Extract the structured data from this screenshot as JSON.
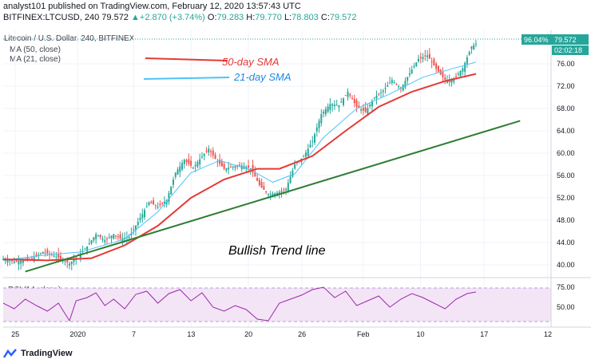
{
  "header": {
    "publish_line": "analyst101 published on TradingView.com, February 12, 2020 13:57:43 UTC",
    "symbol": "BITFINEX:LTCUSD, 240",
    "last": "79.572",
    "change": "+2.870 (+3.74%)",
    "open_label": "O:",
    "open": "79.283",
    "high_label": "H:",
    "high": "79.770",
    "low_label": "L:",
    "low": "78.803",
    "close_label": "C:",
    "close": "79.572"
  },
  "pane_title": "Litecoin / U.S. Dollar, 240, BITFINEX",
  "indicator_1": "MA (50, close)",
  "indicator_2": "MA (21, close)",
  "rsi_label": "RSI (14, close)",
  "price_tag": {
    "percent": "96.04%",
    "price": "79.572",
    "countdown": "02:02:18"
  },
  "annotations": {
    "sma50": "50-day SMA",
    "sma21": "21-day SMA",
    "trend": "Bullish Trend line"
  },
  "footer": {
    "brand": "TradingView"
  },
  "colors": {
    "up": "#26a69a",
    "down": "#ef5350",
    "sma50": "#e53935",
    "sma21": "#4fc3f7",
    "trend": "#2e7d32",
    "rsi": "#9c27b0",
    "rsi_band": "#e1bee7"
  },
  "chart_data": [
    {
      "type": "candlestick",
      "title": "Litecoin / U.S. Dollar, 240, BITFINEX",
      "x_ticks": [
        "25",
        "2020",
        "7",
        "13",
        "20",
        "26",
        "Feb",
        "10",
        "17",
        "12"
      ],
      "y_ticks": [
        76,
        72,
        68,
        64,
        60,
        56,
        52,
        48,
        44,
        40
      ],
      "ylim": [
        38,
        82
      ],
      "close_path": [
        {
          "x": 0,
          "y": 41.0
        },
        {
          "x": 5,
          "y": 40.6
        },
        {
          "x": 12,
          "y": 40.9
        },
        {
          "x": 18,
          "y": 42.3
        },
        {
          "x": 22,
          "y": 41.8
        },
        {
          "x": 27,
          "y": 41.0
        },
        {
          "x": 30,
          "y": 40.2
        },
        {
          "x": 33,
          "y": 41.3
        },
        {
          "x": 38,
          "y": 43.3
        },
        {
          "x": 42,
          "y": 45.5
        },
        {
          "x": 46,
          "y": 44.4
        },
        {
          "x": 50,
          "y": 45.5
        },
        {
          "x": 53,
          "y": 44.7
        },
        {
          "x": 57,
          "y": 45.0
        },
        {
          "x": 62,
          "y": 48.4
        },
        {
          "x": 66,
          "y": 51.2
        },
        {
          "x": 70,
          "y": 50.4
        },
        {
          "x": 74,
          "y": 51.6
        },
        {
          "x": 78,
          "y": 56.5
        },
        {
          "x": 82,
          "y": 58.8
        },
        {
          "x": 86,
          "y": 57.4
        },
        {
          "x": 90,
          "y": 59.4
        },
        {
          "x": 93,
          "y": 60.8
        },
        {
          "x": 96,
          "y": 59.0
        },
        {
          "x": 100,
          "y": 57.2
        },
        {
          "x": 104,
          "y": 57.6
        },
        {
          "x": 108,
          "y": 57.8
        },
        {
          "x": 112,
          "y": 57.3
        },
        {
          "x": 116,
          "y": 54.3
        },
        {
          "x": 120,
          "y": 52.6
        },
        {
          "x": 124,
          "y": 52.9
        },
        {
          "x": 128,
          "y": 53.6
        },
        {
          "x": 132,
          "y": 58.0
        },
        {
          "x": 136,
          "y": 59.4
        },
        {
          "x": 140,
          "y": 62.2
        },
        {
          "x": 144,
          "y": 67.0
        },
        {
          "x": 148,
          "y": 68.8
        },
        {
          "x": 152,
          "y": 68.6
        },
        {
          "x": 156,
          "y": 71.0
        },
        {
          "x": 160,
          "y": 68.3
        },
        {
          "x": 164,
          "y": 67.4
        },
        {
          "x": 168,
          "y": 70.0
        },
        {
          "x": 172,
          "y": 71.2
        },
        {
          "x": 176,
          "y": 73.1
        },
        {
          "x": 180,
          "y": 71.6
        },
        {
          "x": 184,
          "y": 74.3
        },
        {
          "x": 188,
          "y": 76.9
        },
        {
          "x": 192,
          "y": 77.5
        },
        {
          "x": 196,
          "y": 75.1
        },
        {
          "x": 200,
          "y": 73.1
        },
        {
          "x": 204,
          "y": 73.3
        },
        {
          "x": 208,
          "y": 75.2
        },
        {
          "x": 212,
          "y": 79.1
        },
        {
          "x": 214,
          "y": 79.57
        }
      ],
      "series": [
        {
          "name": "MA (50, close)",
          "values": [
            {
              "x": 0,
              "y": 41.0
            },
            {
              "x": 20,
              "y": 40.8
            },
            {
              "x": 40,
              "y": 41.2
            },
            {
              "x": 55,
              "y": 43.5
            },
            {
              "x": 70,
              "y": 47.0
            },
            {
              "x": 85,
              "y": 52.0
            },
            {
              "x": 100,
              "y": 55.3
            },
            {
              "x": 115,
              "y": 57.2
            },
            {
              "x": 125,
              "y": 57.2
            },
            {
              "x": 140,
              "y": 59.5
            },
            {
              "x": 155,
              "y": 64.0
            },
            {
              "x": 170,
              "y": 68.3
            },
            {
              "x": 185,
              "y": 71.0
            },
            {
              "x": 200,
              "y": 72.9
            },
            {
              "x": 214,
              "y": 74.2
            }
          ]
        },
        {
          "name": "MA (21, close)",
          "values": [
            {
              "x": 0,
              "y": 40.8
            },
            {
              "x": 20,
              "y": 41.8
            },
            {
              "x": 35,
              "y": 42.3
            },
            {
              "x": 55,
              "y": 44.6
            },
            {
              "x": 70,
              "y": 49.5
            },
            {
              "x": 85,
              "y": 56.5
            },
            {
              "x": 98,
              "y": 58.7
            },
            {
              "x": 112,
              "y": 57.0
            },
            {
              "x": 122,
              "y": 54.8
            },
            {
              "x": 132,
              "y": 56.3
            },
            {
              "x": 145,
              "y": 62.8
            },
            {
              "x": 160,
              "y": 68.0
            },
            {
              "x": 175,
              "y": 70.6
            },
            {
              "x": 190,
              "y": 73.6
            },
            {
              "x": 203,
              "y": 75.1
            },
            {
              "x": 214,
              "y": 76.3
            }
          ]
        }
      ],
      "trend_line": [
        {
          "x": 10,
          "y": 38.8
        },
        {
          "x": 234,
          "y": 65.8
        }
      ]
    },
    {
      "type": "line",
      "title": "RSI (14, close)",
      "y_ticks": [
        75.0,
        50.0
      ],
      "ylim": [
        25,
        85
      ],
      "band": [
        30,
        70
      ],
      "values": [
        {
          "x": 0,
          "y": 55
        },
        {
          "x": 5,
          "y": 48
        },
        {
          "x": 10,
          "y": 60
        },
        {
          "x": 15,
          "y": 52
        },
        {
          "x": 20,
          "y": 45
        },
        {
          "x": 25,
          "y": 55
        },
        {
          "x": 30,
          "y": 33
        },
        {
          "x": 33,
          "y": 58
        },
        {
          "x": 38,
          "y": 62
        },
        {
          "x": 42,
          "y": 68
        },
        {
          "x": 46,
          "y": 52
        },
        {
          "x": 50,
          "y": 60
        },
        {
          "x": 55,
          "y": 48
        },
        {
          "x": 60,
          "y": 66
        },
        {
          "x": 65,
          "y": 70
        },
        {
          "x": 70,
          "y": 55
        },
        {
          "x": 75,
          "y": 67
        },
        {
          "x": 80,
          "y": 72
        },
        {
          "x": 85,
          "y": 58
        },
        {
          "x": 90,
          "y": 68
        },
        {
          "x": 95,
          "y": 50
        },
        {
          "x": 100,
          "y": 45
        },
        {
          "x": 105,
          "y": 52
        },
        {
          "x": 110,
          "y": 47
        },
        {
          "x": 115,
          "y": 35
        },
        {
          "x": 120,
          "y": 33
        },
        {
          "x": 125,
          "y": 55
        },
        {
          "x": 130,
          "y": 60
        },
        {
          "x": 135,
          "y": 65
        },
        {
          "x": 140,
          "y": 72
        },
        {
          "x": 145,
          "y": 75
        },
        {
          "x": 150,
          "y": 62
        },
        {
          "x": 155,
          "y": 70
        },
        {
          "x": 160,
          "y": 52
        },
        {
          "x": 165,
          "y": 58
        },
        {
          "x": 170,
          "y": 64
        },
        {
          "x": 175,
          "y": 50
        },
        {
          "x": 180,
          "y": 60
        },
        {
          "x": 185,
          "y": 67
        },
        {
          "x": 190,
          "y": 62
        },
        {
          "x": 195,
          "y": 55
        },
        {
          "x": 200,
          "y": 48
        },
        {
          "x": 205,
          "y": 60
        },
        {
          "x": 210,
          "y": 67
        },
        {
          "x": 214,
          "y": 69
        }
      ]
    }
  ]
}
